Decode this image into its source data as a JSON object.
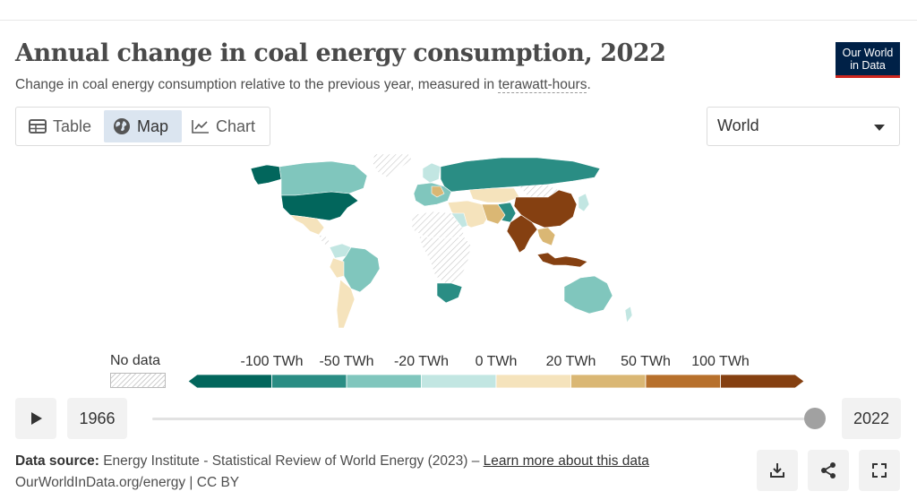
{
  "header": {
    "title": "Annual change in coal energy consumption, 2022",
    "subtitle_prefix": "Change in coal energy consumption relative to the previous year, measured in ",
    "subtitle_unit": "terawatt-hours",
    "subtitle_suffix": ".",
    "logo_line1": "Our World",
    "logo_line2": "in Data"
  },
  "tabs": [
    {
      "label": "Table",
      "icon": "table-icon",
      "active": false
    },
    {
      "label": "Map",
      "icon": "globe-icon",
      "active": true
    },
    {
      "label": "Chart",
      "icon": "line-chart-icon",
      "active": false
    }
  ],
  "entity_selector": {
    "value": "World"
  },
  "legend": {
    "no_data_label": "No data",
    "ticks": [
      "-100 TWh",
      "-50 TWh",
      "-20 TWh",
      "0 TWh",
      "20 TWh",
      "50 TWh",
      "100 TWh"
    ],
    "colors": [
      "#02665c",
      "#2a8d84",
      "#80c6bd",
      "#c2e6e2",
      "#f5e3bc",
      "#dab774",
      "#b7702c",
      "#854011"
    ]
  },
  "timeline": {
    "start_year": "1966",
    "end_year": "2022",
    "position": 1.0
  },
  "footer": {
    "source_label": "Data source:",
    "source_text": "Energy Institute - Statistical Review of World Energy (2023) – ",
    "learn_more": "Learn more about this data",
    "url_line": "OurWorldInData.org/energy | CC BY"
  },
  "actions": [
    {
      "icon": "download-icon"
    },
    {
      "icon": "share-icon"
    },
    {
      "icon": "fullscreen-icon"
    }
  ],
  "map_regions": [
    {
      "name": "United States",
      "color": "#02665c"
    },
    {
      "name": "Canada",
      "color": "#80c6bd"
    },
    {
      "name": "Russia",
      "color": "#2a8d84"
    },
    {
      "name": "China",
      "color": "#854011"
    },
    {
      "name": "India",
      "color": "#854011"
    },
    {
      "name": "Indonesia",
      "color": "#854011"
    },
    {
      "name": "Australia",
      "color": "#80c6bd"
    },
    {
      "name": "South Africa",
      "color": "#2a8d84"
    },
    {
      "name": "Brazil",
      "color": "#80c6bd"
    },
    {
      "name": "Mexico",
      "color": "#f5e3bc"
    },
    {
      "name": "Argentina",
      "color": "#f5e3bc"
    },
    {
      "name": "Kazakhstan",
      "color": "#f5e3bc"
    },
    {
      "name": "Europe",
      "color": "#80c6bd"
    }
  ]
}
